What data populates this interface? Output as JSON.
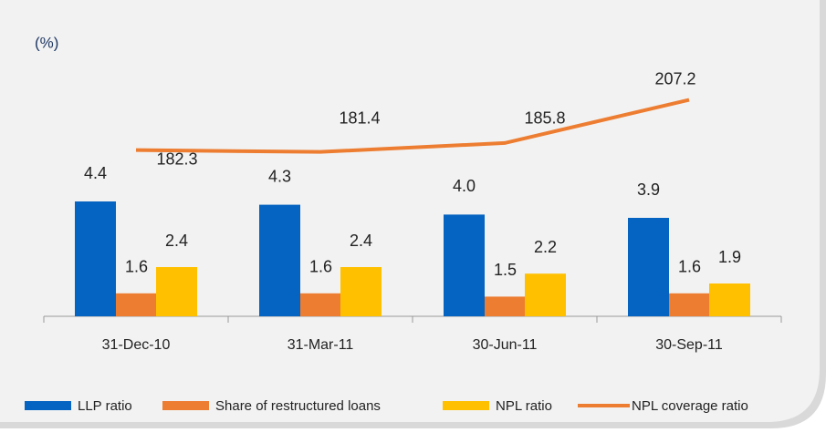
{
  "chart_data": {
    "type": "bar",
    "unit_label": "(%)",
    "categories": [
      "31-Dec-10",
      "31-Mar-11",
      "30-Jun-11",
      "30-Sep-11"
    ],
    "series": [
      {
        "name": "LLP ratio",
        "color": "#0563c1",
        "values": [
          4.4,
          4.3,
          4.0,
          3.9
        ],
        "value_labels": [
          "4.4",
          "4.3",
          "4.0",
          "3.9"
        ]
      },
      {
        "name": "Share of restructured loans",
        "color": "#ed7d31",
        "values": [
          1.6,
          1.6,
          1.5,
          1.6
        ],
        "value_labels": [
          "1.6",
          "1.6",
          "1.5",
          "1.6"
        ]
      },
      {
        "name": "NPL ratio",
        "color": "#ffc000",
        "values": [
          2.4,
          2.4,
          2.2,
          1.9
        ],
        "value_labels": [
          "2.4",
          "2.4",
          "2.2",
          "1.9"
        ]
      },
      {
        "name": "NPL coverage ratio",
        "color": "#ed7d31",
        "type": "line",
        "axis": "y2",
        "values": [
          182.3,
          181.4,
          185.8,
          207.2
        ]
      }
    ],
    "ylim": [
      0.9,
      8.9
    ],
    "y2lim": [
      100,
      230
    ],
    "legend": "bottom"
  }
}
